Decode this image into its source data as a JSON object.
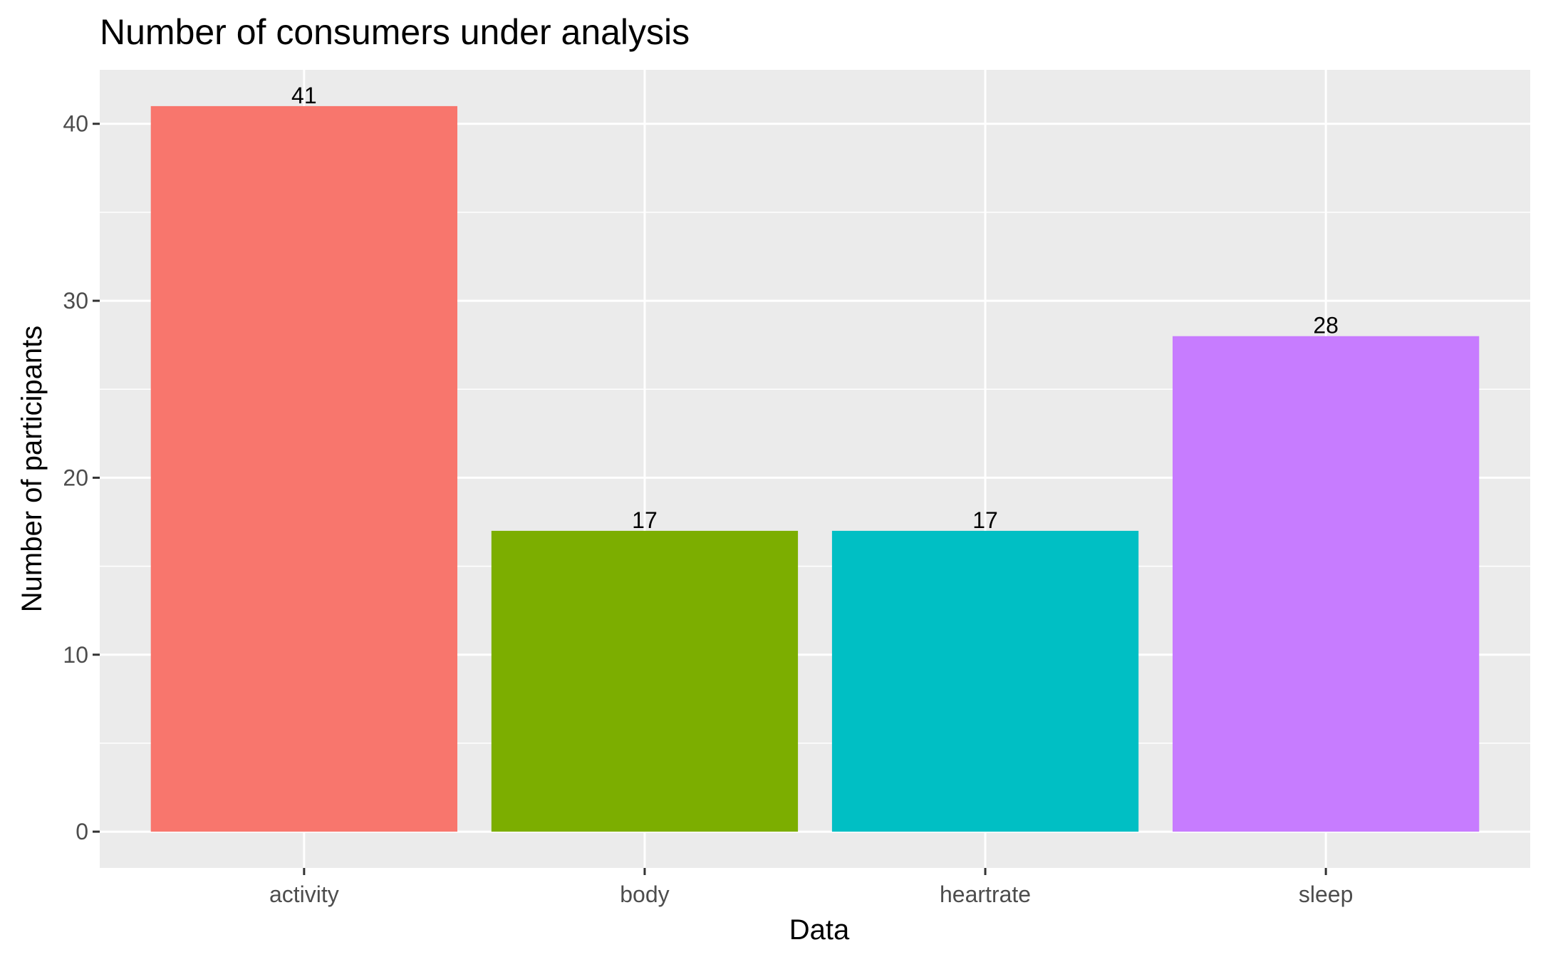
{
  "chart_data": {
    "type": "bar",
    "title": "Number of consumers under analysis",
    "xlabel": "Data",
    "ylabel": "Number of participants",
    "categories": [
      "activity",
      "body",
      "heartrate",
      "sleep"
    ],
    "values": [
      41,
      17,
      17,
      28
    ],
    "data_labels": [
      "41",
      "17",
      "17",
      "28"
    ],
    "colors": [
      "#F8766D",
      "#7CAE00",
      "#00BFC4",
      "#C77CFF"
    ],
    "ylim": [
      -2.05,
      43.05
    ],
    "yticks": [
      0,
      10,
      20,
      30,
      40
    ],
    "ytick_labels": [
      "0",
      "10",
      "20",
      "30",
      "40"
    ],
    "grid": true,
    "legend": "none",
    "panel_background": "#EBEBEB",
    "grid_color": "#FFFFFF",
    "tick_color": "#333333"
  }
}
